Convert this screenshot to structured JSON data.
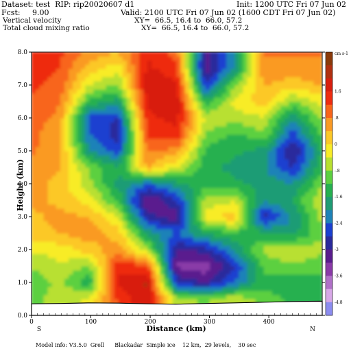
{
  "header": {
    "dataset": "Dataset: test  RIP: rip20020607 d1",
    "init": "Init: 1200 UTC Fri 07 Jun 02",
    "fcst": "Fcst:     9.00",
    "valid": "Valid: 2100 UTC Fri 07 Jun 02 (1600 CDT Fri 07 Jun 02)",
    "field1": "Vertical velocity",
    "xy1": "XY=  66.5, 16.4 to  66.0, 57.2",
    "field2": "Total cloud mixing ratio",
    "xy2": "XY=  66.5, 16.4 to  66.0, 57.2"
  },
  "footer": "Model info: V3.5.0  Grell      Blackadar  Simple ice    12 km,  29 levels,    30 sec",
  "chart_data": {
    "type": "heatmap",
    "xlabel": "Distance (km)",
    "ylabel": "Height (km)",
    "x_ticks": [
      "0",
      "100",
      "200",
      "300",
      "400"
    ],
    "x_tick_values": [
      0,
      100,
      200,
      300,
      400
    ],
    "y_ticks": [
      "0.0",
      "1.0",
      "2.0",
      "3.0",
      "4.0",
      "5.0",
      "6.0",
      "7.0",
      "8.0"
    ],
    "y_tick_values": [
      0,
      1,
      2,
      3,
      4,
      5,
      6,
      7,
      8
    ],
    "xlim": [
      0,
      490
    ],
    "ylim": [
      0,
      8
    ],
    "endpoint_labels": {
      "left": "S",
      "right": "N"
    },
    "colorbar": {
      "unit_label": "cm s-1",
      "tick_labels": [
        "1.6",
        ".8",
        "0",
        "-.8",
        "-1.6",
        "-2.4",
        "-3",
        "-3.6",
        "-4.8"
      ],
      "colors": [
        "#8a3a0a",
        "#b03010",
        "#d81e0e",
        "#ee2c10",
        "#f8651a",
        "#fa9a24",
        "#fcc828",
        "#f8ec28",
        "#b8e030",
        "#5cd040",
        "#26b050",
        "#1f9c74",
        "#1e82b8",
        "#1a40d0",
        "#2a2a9c",
        "#5a1c8e",
        "#8a3aa8",
        "#b070c8",
        "#d8a8e8",
        "#8c8cf0"
      ]
    },
    "surface_profile_km": [
      0.35,
      0.36,
      0.38,
      0.37,
      0.35,
      0.34,
      0.36,
      0.38,
      0.4,
      0.42,
      0.43
    ],
    "vertical_velocity_grid": {
      "x_km": [
        0,
        49,
        98,
        147,
        196,
        245,
        294,
        343,
        392,
        441,
        490
      ],
      "z_km": [
        0.5,
        1.0,
        1.5,
        2.0,
        2.5,
        3.0,
        3.5,
        4.0,
        4.5,
        5.0,
        5.5,
        6.0,
        6.5,
        7.0,
        7.5,
        8.0
      ],
      "values": [
        [
          -0.9,
          -0.5,
          -0.3,
          1.2,
          1.8,
          -0.6,
          -0.8,
          -0.4,
          -0.9,
          -1.2,
          -1.4
        ],
        [
          -1.0,
          -0.6,
          -1.4,
          1.6,
          1.9,
          -2.6,
          -3.0,
          -2.2,
          -1.2,
          -1.5,
          -1.2
        ],
        [
          -0.7,
          -0.4,
          -0.8,
          1.4,
          1.2,
          -3.4,
          -3.6,
          -2.6,
          -1.0,
          -0.8,
          -1.0
        ],
        [
          -0.3,
          -0.2,
          0.2,
          0.6,
          -0.6,
          -3.0,
          -2.8,
          -1.8,
          -0.6,
          -0.4,
          -0.6
        ],
        [
          0.2,
          0.4,
          0.6,
          0.2,
          -1.6,
          -2.2,
          -1.4,
          -1.2,
          -1.4,
          -1.6,
          -0.8
        ],
        [
          0.3,
          0.5,
          0.4,
          -0.4,
          -2.8,
          -3.2,
          -0.2,
          0.3,
          -2.8,
          -1.8,
          -0.6
        ],
        [
          0.5,
          0.3,
          -0.2,
          -1.2,
          -3.4,
          -2.6,
          -0.6,
          -0.4,
          -1.8,
          -1.4,
          -0.4
        ],
        [
          0.6,
          0.2,
          -0.6,
          -1.6,
          -2.2,
          -1.6,
          -1.2,
          -1.4,
          -1.6,
          -1.8,
          -0.8
        ],
        [
          0.7,
          0.4,
          -0.8,
          -1.4,
          0.4,
          -0.4,
          -1.3,
          -1.6,
          -1.8,
          -2.6,
          -1.2
        ],
        [
          0.8,
          0.5,
          -1.8,
          -2.4,
          0.8,
          0.6,
          -1.2,
          -1.4,
          -1.6,
          -3.0,
          -1.4
        ],
        [
          0.9,
          0.4,
          -2.2,
          -2.8,
          1.2,
          1.4,
          -0.8,
          -1.2,
          -0.8,
          -2.4,
          -1.0
        ],
        [
          1.0,
          0.6,
          -2.4,
          -2.6,
          1.4,
          1.6,
          -0.4,
          -0.6,
          -0.4,
          -1.8,
          -0.6
        ],
        [
          1.1,
          0.8,
          -1.2,
          -1.6,
          1.6,
          1.8,
          -1.4,
          -0.2,
          0.2,
          -0.8,
          -0.2
        ],
        [
          1.2,
          1.0,
          -0.4,
          -0.8,
          1.8,
          1.6,
          -2.6,
          -0.8,
          0.4,
          0.2,
          0.4
        ],
        [
          1.3,
          1.1,
          0.2,
          -0.2,
          1.6,
          1.2,
          -3.2,
          -1.8,
          0.6,
          0.6,
          0.6
        ],
        [
          1.4,
          1.2,
          0.6,
          0.4,
          1.4,
          1.0,
          -3.0,
          -2.0,
          0.8,
          0.8,
          0.8
        ]
      ]
    }
  }
}
